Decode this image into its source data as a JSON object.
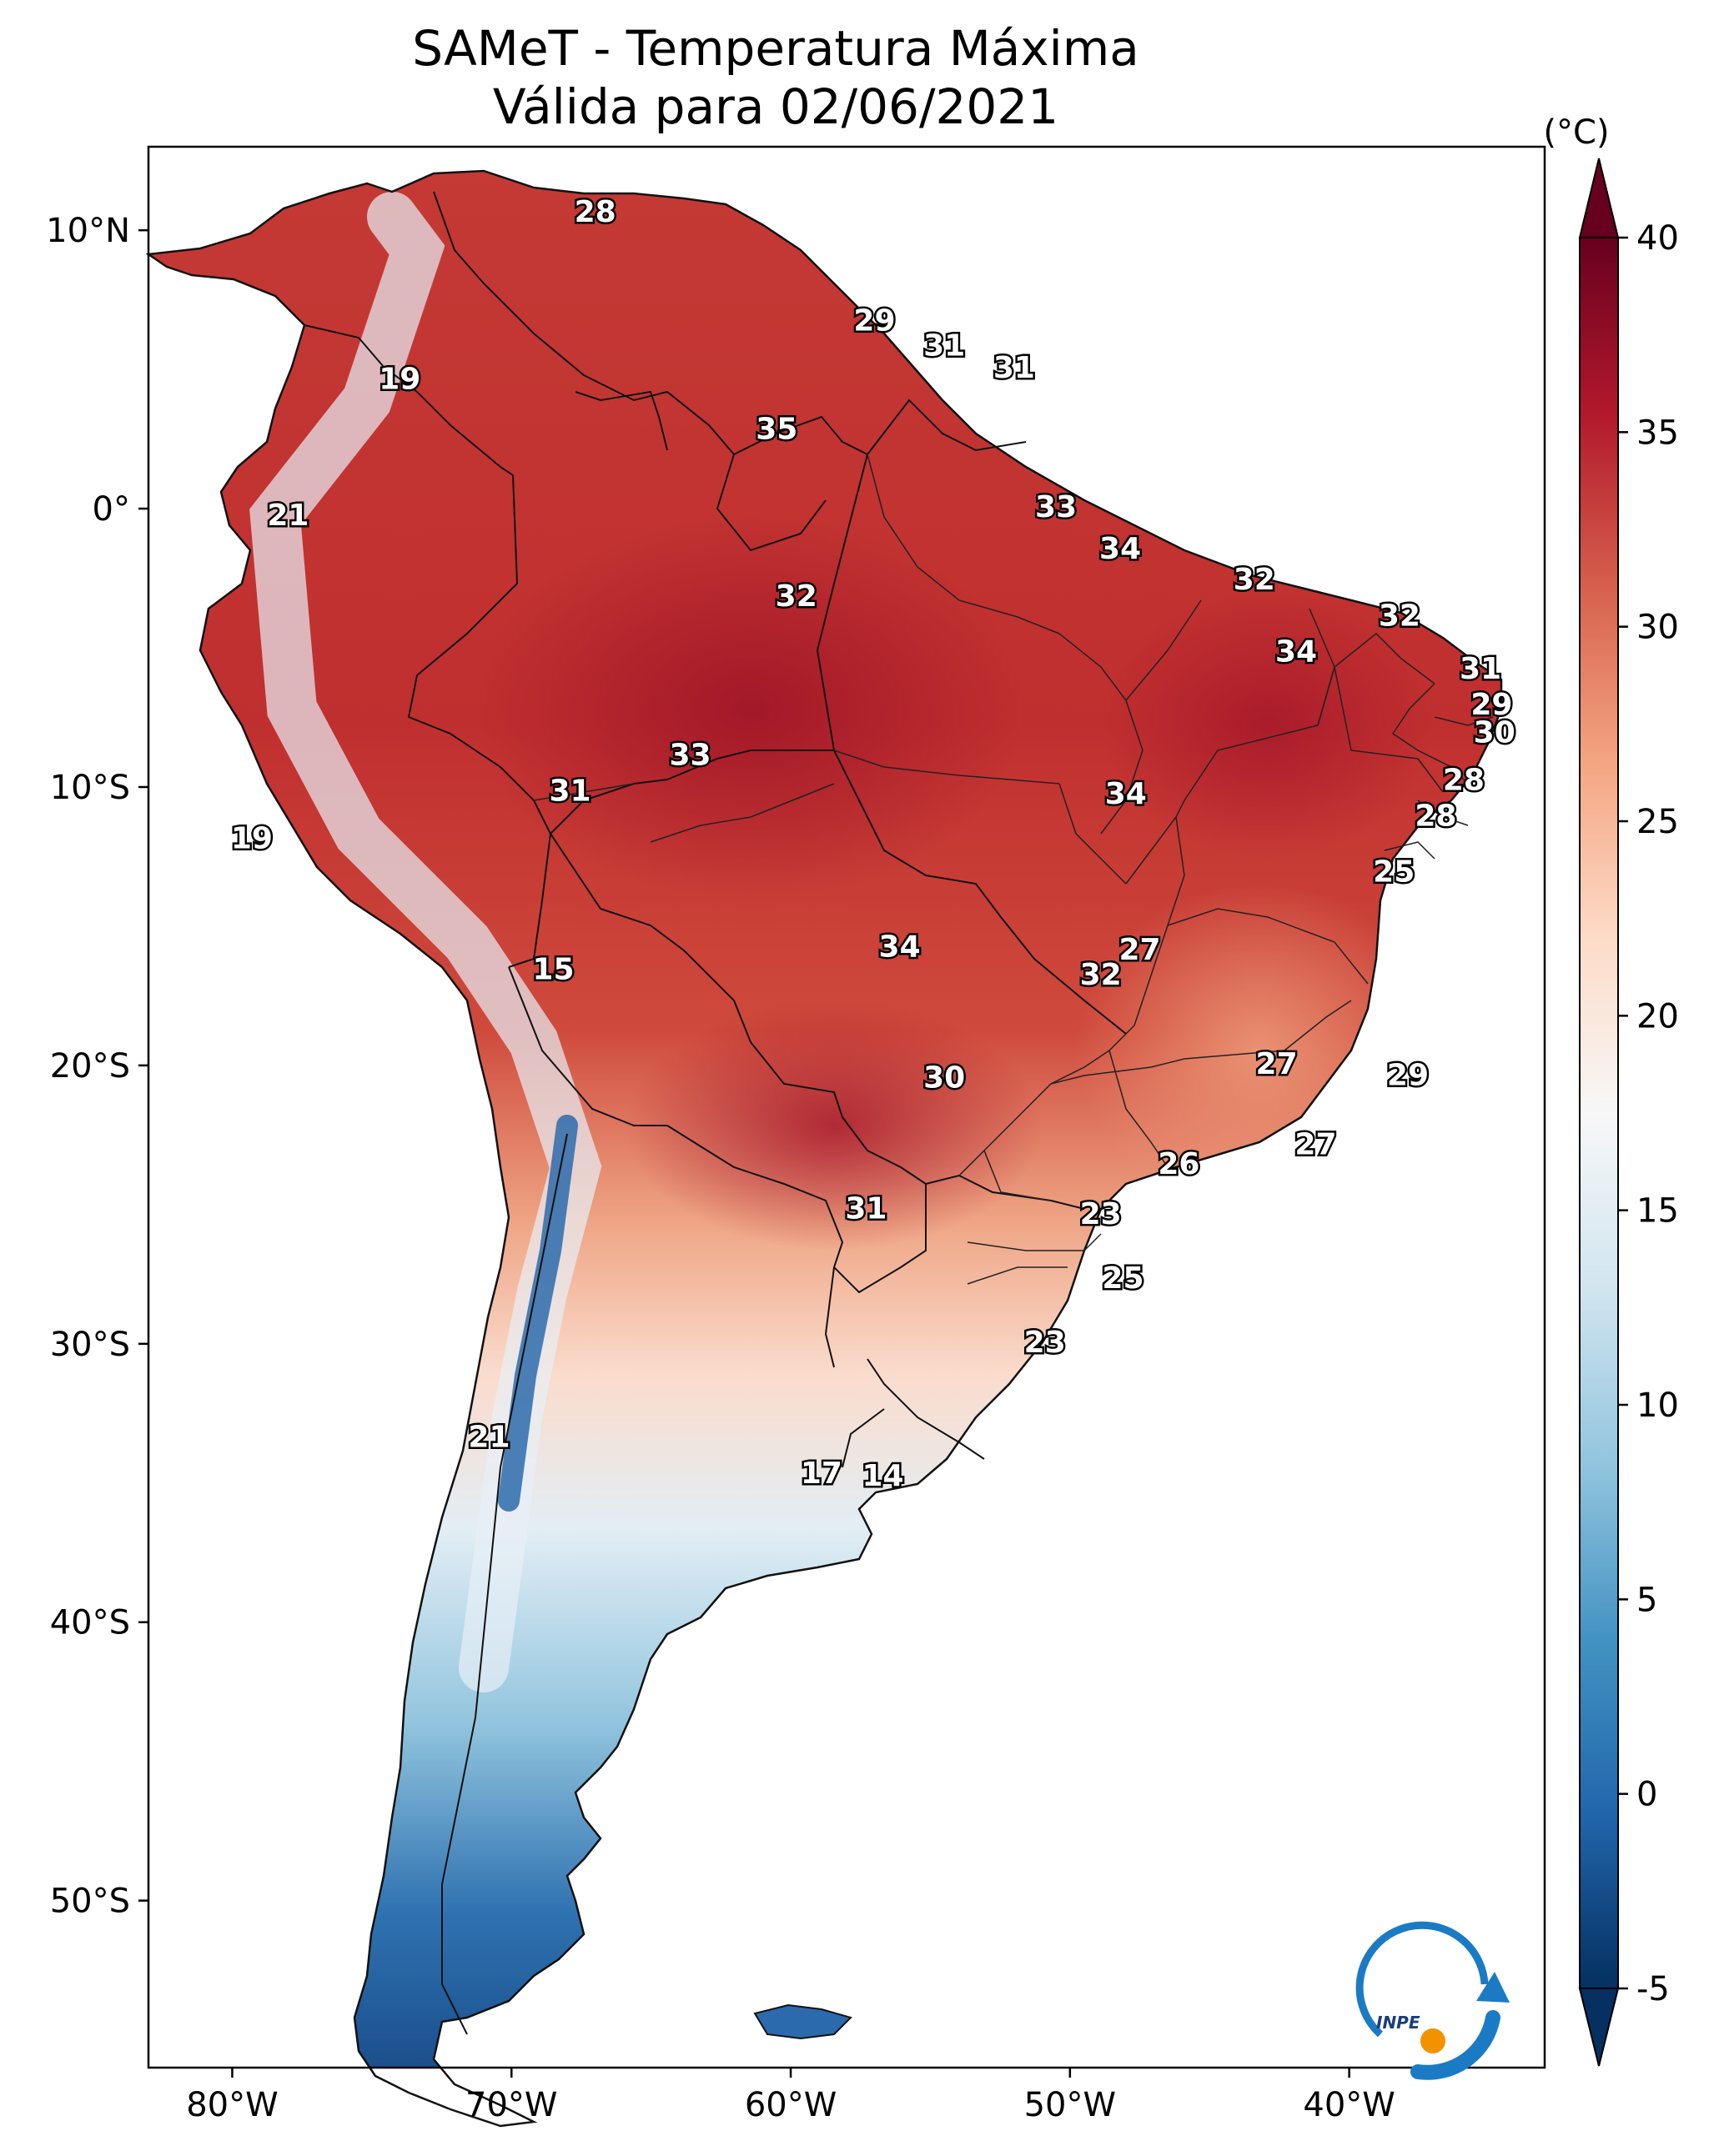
{
  "title": {
    "line1": "SAMeT - Temperatura Máxima",
    "line2": "Válida para 02/06/2021"
  },
  "map": {
    "lon_range": [
      -83,
      -33
    ],
    "lat_range": [
      -56,
      13
    ],
    "x_ticks": [
      {
        "lon": -80,
        "label": "80°W"
      },
      {
        "lon": -70,
        "label": "70°W"
      },
      {
        "lon": -60,
        "label": "60°W"
      },
      {
        "lon": -50,
        "label": "50°W"
      },
      {
        "lon": -40,
        "label": "40°W"
      }
    ],
    "y_ticks": [
      {
        "lat": 10,
        "label": "10°N"
      },
      {
        "lat": 0,
        "label": "0°"
      },
      {
        "lat": -10,
        "label": "10°S"
      },
      {
        "lat": -20,
        "label": "20°S"
      },
      {
        "lat": -30,
        "label": "30°S"
      },
      {
        "lat": -40,
        "label": "40°S"
      },
      {
        "lat": -50,
        "label": "50°S"
      }
    ],
    "temperature_labels": [
      {
        "lon": -67.0,
        "lat": 10.6,
        "text": "28"
      },
      {
        "lon": -74.0,
        "lat": 4.6,
        "text": "19"
      },
      {
        "lon": -78.0,
        "lat": -0.3,
        "text": "21"
      },
      {
        "lon": -57.0,
        "lat": 6.7,
        "text": "29"
      },
      {
        "lon": -54.5,
        "lat": 5.8,
        "text": "31"
      },
      {
        "lon": -52.0,
        "lat": 5.0,
        "text": "31"
      },
      {
        "lon": -60.5,
        "lat": 2.8,
        "text": "35"
      },
      {
        "lon": -50.5,
        "lat": 0.0,
        "text": "33"
      },
      {
        "lon": -48.2,
        "lat": -1.5,
        "text": "34"
      },
      {
        "lon": -59.8,
        "lat": -3.2,
        "text": "32"
      },
      {
        "lon": -43.4,
        "lat": -2.6,
        "text": "32"
      },
      {
        "lon": -38.2,
        "lat": -3.9,
        "text": "32"
      },
      {
        "lon": -41.9,
        "lat": -5.2,
        "text": "34"
      },
      {
        "lon": -35.3,
        "lat": -5.8,
        "text": "31"
      },
      {
        "lon": -34.9,
        "lat": -7.1,
        "text": "29"
      },
      {
        "lon": -34.8,
        "lat": -8.1,
        "text": "30"
      },
      {
        "lon": -63.6,
        "lat": -8.9,
        "text": "33"
      },
      {
        "lon": -67.9,
        "lat": -10.2,
        "text": "31"
      },
      {
        "lon": -48.0,
        "lat": -10.3,
        "text": "34"
      },
      {
        "lon": -35.9,
        "lat": -9.8,
        "text": "28"
      },
      {
        "lon": -36.9,
        "lat": -11.1,
        "text": "28"
      },
      {
        "lon": -38.4,
        "lat": -13.1,
        "text": "25"
      },
      {
        "lon": -79.3,
        "lat": -11.9,
        "text": "19"
      },
      {
        "lon": -68.5,
        "lat": -16.6,
        "text": "15"
      },
      {
        "lon": -56.1,
        "lat": -15.8,
        "text": "34"
      },
      {
        "lon": -47.5,
        "lat": -15.9,
        "text": "27"
      },
      {
        "lon": -48.9,
        "lat": -16.8,
        "text": "32"
      },
      {
        "lon": -42.6,
        "lat": -20.0,
        "text": "27"
      },
      {
        "lon": -37.9,
        "lat": -20.4,
        "text": "29"
      },
      {
        "lon": -54.5,
        "lat": -20.5,
        "text": "30"
      },
      {
        "lon": -41.2,
        "lat": -22.9,
        "text": "27"
      },
      {
        "lon": -46.1,
        "lat": -23.6,
        "text": "26"
      },
      {
        "lon": -57.3,
        "lat": -25.2,
        "text": "31"
      },
      {
        "lon": -48.9,
        "lat": -25.4,
        "text": "23"
      },
      {
        "lon": -48.1,
        "lat": -27.7,
        "text": "25"
      },
      {
        "lon": -50.9,
        "lat": -30.0,
        "text": "23"
      },
      {
        "lon": -70.8,
        "lat": -33.4,
        "text": "21"
      },
      {
        "lon": -58.9,
        "lat": -34.7,
        "text": "17"
      },
      {
        "lon": -56.7,
        "lat": -34.8,
        "text": "14"
      }
    ]
  },
  "colorbar": {
    "unit_label": "(°C)",
    "min": -5,
    "max": 40,
    "ticks": [
      "40",
      "35",
      "30",
      "25",
      "20",
      "15",
      "10",
      "5",
      "0",
      "-5"
    ],
    "colors": [
      "#053061",
      "#2166ac",
      "#4393c3",
      "#92c5de",
      "#d1e5f0",
      "#f7f7f7",
      "#fddbc7",
      "#f4a582",
      "#d6604d",
      "#b2182b",
      "#67001f"
    ]
  },
  "logo": {
    "text": "INPE",
    "colors": {
      "blue": "#1a7bc4",
      "orange": "#f39200"
    }
  }
}
